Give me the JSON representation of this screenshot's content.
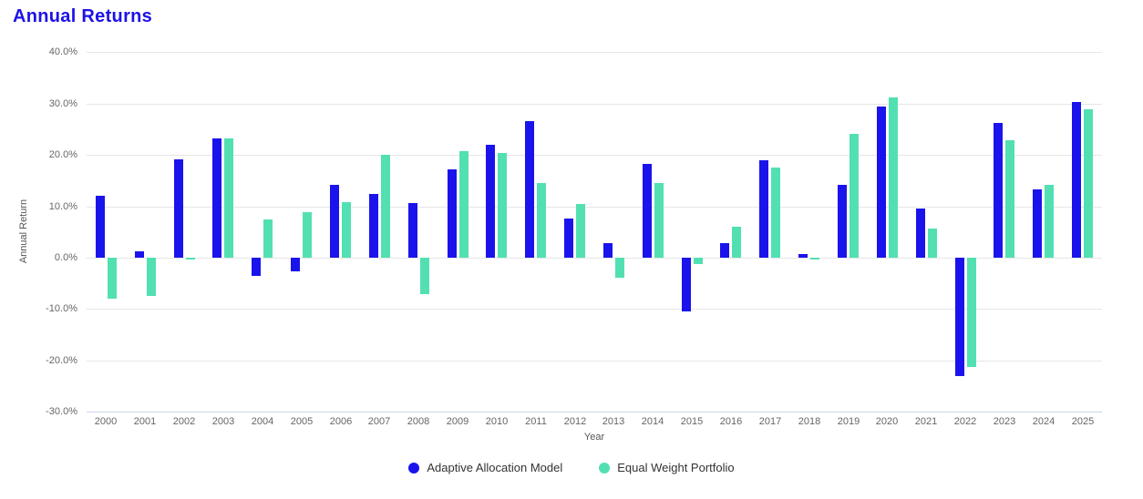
{
  "page_title": "Annual Returns",
  "colors": {
    "title": "#1c12e8",
    "series1": "#1b13ec",
    "series2": "#52e0b2",
    "gridline": "#e6e6e6",
    "axis_line": "#ccd6eb",
    "tick_text": "#666666",
    "axis_title_text": "#555555",
    "legend_text": "#333333",
    "background": "#ffffff"
  },
  "chart_data": {
    "type": "bar",
    "title": "Annual Returns",
    "xlabel": "Year",
    "ylabel": "Annual Return",
    "ylim": [
      -30,
      40
    ],
    "ytick_values": [
      40,
      30,
      20,
      10,
      0,
      -10,
      -20,
      -30
    ],
    "ytick_labels": [
      "40.0%",
      "30.0%",
      "20.0%",
      "10.0%",
      "0.0%",
      "-10.0%",
      "-20.0%",
      "-30.0%"
    ],
    "grid": true,
    "legend_position": "bottom-center",
    "legend_marker": "circle",
    "categories": [
      "2000",
      "2001",
      "2002",
      "2003",
      "2004",
      "2005",
      "2006",
      "2007",
      "2008",
      "2009",
      "2010",
      "2011",
      "2012",
      "2013",
      "2014",
      "2015",
      "2016",
      "2017",
      "2018",
      "2019",
      "2020",
      "2021",
      "2022",
      "2023",
      "2024",
      "2025"
    ],
    "series": [
      {
        "name": "Adaptive Allocation Model",
        "color": "#1b13ec",
        "values": [
          12.0,
          1.3,
          19.2,
          23.2,
          -3.6,
          -2.7,
          14.1,
          12.4,
          10.6,
          17.2,
          21.9,
          26.5,
          7.6,
          2.9,
          18.3,
          -10.5,
          2.9,
          19.0,
          0.7,
          14.2,
          29.4,
          9.6,
          -23.0,
          26.2,
          13.2,
          30.2
        ]
      },
      {
        "name": "Equal Weight Portfolio",
        "color": "#52e0b2",
        "values": [
          -8.0,
          -7.5,
          -0.3,
          23.2,
          7.5,
          8.8,
          10.8,
          20.0,
          -7.0,
          20.7,
          20.3,
          14.6,
          10.5,
          -3.9,
          14.6,
          -1.2,
          6.1,
          17.6,
          -0.3,
          24.1,
          31.2,
          5.6,
          -21.2,
          22.9,
          14.2,
          28.8
        ]
      }
    ]
  }
}
